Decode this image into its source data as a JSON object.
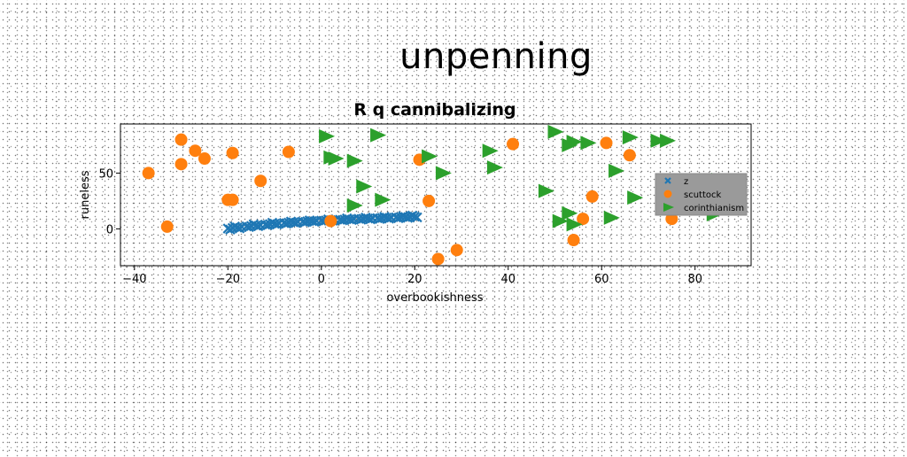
{
  "page_title": "unpenning",
  "chart_data": {
    "type": "scatter",
    "title": "R q cannibalizing",
    "xlabel": "overbookishness",
    "ylabel": "runeless",
    "xlim": [
      -43,
      92
    ],
    "ylim": [
      -33,
      94
    ],
    "xticks": [
      -40,
      -20,
      0,
      20,
      40,
      60,
      80
    ],
    "yticks": [
      0,
      50
    ],
    "legend_placement": "center-right",
    "grid": false,
    "series": [
      {
        "name": "z",
        "color": "#1f77b4",
        "marker": "x",
        "points": [
          [
            -20,
            0.3
          ],
          [
            -19,
            0.8
          ],
          [
            -18,
            1.2
          ],
          [
            -17,
            1.7
          ],
          [
            -16,
            2.2
          ],
          [
            -15,
            2.6
          ],
          [
            -14,
            3.0
          ],
          [
            -13,
            3.4
          ],
          [
            -12,
            3.8
          ],
          [
            -11,
            4.2
          ],
          [
            -10,
            4.6
          ],
          [
            -9,
            5.0
          ],
          [
            -8,
            5.3
          ],
          [
            -7,
            5.6
          ],
          [
            -6,
            5.9
          ],
          [
            -5,
            6.2
          ],
          [
            -4,
            6.5
          ],
          [
            -3,
            6.8
          ],
          [
            -2,
            7.0
          ],
          [
            -1,
            7.2
          ],
          [
            0,
            7.4
          ],
          [
            1,
            7.6
          ],
          [
            2,
            7.8
          ],
          [
            3,
            8.0
          ],
          [
            4,
            8.2
          ],
          [
            5,
            8.4
          ],
          [
            6,
            8.6
          ],
          [
            7,
            8.8
          ],
          [
            8,
            9.0
          ],
          [
            9,
            9.1
          ],
          [
            10,
            9.3
          ],
          [
            11,
            9.5
          ],
          [
            12,
            9.6
          ],
          [
            13,
            9.8
          ],
          [
            14,
            10.0
          ],
          [
            15,
            10.1
          ],
          [
            16,
            10.3
          ],
          [
            17,
            10.5
          ],
          [
            18,
            10.6
          ],
          [
            19,
            10.8
          ],
          [
            20,
            11.0
          ],
          [
            -19.5,
            -0.6
          ],
          [
            -17.5,
            0.5
          ],
          [
            -15.5,
            1.6
          ],
          [
            -13.5,
            2.4
          ],
          [
            -11.5,
            3.3
          ],
          [
            -9.5,
            4.0
          ],
          [
            -7.5,
            4.7
          ],
          [
            -5.5,
            5.3
          ],
          [
            -3.5,
            5.9
          ],
          [
            -1.5,
            6.4
          ],
          [
            0.5,
            6.9
          ],
          [
            2.5,
            7.3
          ],
          [
            4.5,
            7.7
          ],
          [
            6.5,
            8.0
          ],
          [
            8.5,
            8.3
          ],
          [
            10.5,
            8.6
          ],
          [
            12.5,
            8.9
          ],
          [
            14.5,
            9.2
          ],
          [
            16.5,
            9.6
          ],
          [
            18.5,
            9.9
          ],
          [
            20.5,
            10.3
          ],
          [
            -18.5,
            2.1
          ],
          [
            -14.5,
            4.1
          ],
          [
            -10.5,
            5.5
          ],
          [
            -6.5,
            6.6
          ],
          [
            -2.5,
            7.6
          ],
          [
            1.5,
            8.6
          ],
          [
            5.5,
            9.4
          ],
          [
            9.5,
            10.1
          ],
          [
            13.5,
            10.8
          ],
          [
            17.5,
            11.4
          ],
          [
            19.5,
            11.9
          ]
        ]
      },
      {
        "name": "scuttock",
        "color": "#ff7f0e",
        "marker": "o",
        "points": [
          [
            -37,
            50
          ],
          [
            -33,
            2
          ],
          [
            -30,
            80
          ],
          [
            -30,
            58
          ],
          [
            -27,
            70
          ],
          [
            -25,
            63
          ],
          [
            -20,
            26
          ],
          [
            -19,
            26
          ],
          [
            -19,
            68
          ],
          [
            -13,
            43
          ],
          [
            -7,
            69
          ],
          [
            2,
            7
          ],
          [
            21,
            62
          ],
          [
            23,
            25
          ],
          [
            25,
            -27
          ],
          [
            29,
            -19
          ],
          [
            41,
            76
          ],
          [
            54,
            -10
          ],
          [
            56,
            9
          ],
          [
            58,
            29
          ],
          [
            61,
            77
          ],
          [
            66,
            66
          ],
          [
            73,
            34
          ],
          [
            75,
            9
          ]
        ]
      },
      {
        "name": "corinthianism",
        "color": "#2ca02c",
        "marker": ">",
        "points": [
          [
            1,
            83
          ],
          [
            2,
            64
          ],
          [
            3,
            63
          ],
          [
            7,
            61
          ],
          [
            7,
            21
          ],
          [
            9,
            38
          ],
          [
            12,
            84
          ],
          [
            13,
            26
          ],
          [
            23,
            65
          ],
          [
            26,
            50
          ],
          [
            36,
            70
          ],
          [
            37,
            55
          ],
          [
            48,
            34
          ],
          [
            50,
            87
          ],
          [
            51,
            7
          ],
          [
            53,
            14
          ],
          [
            53,
            75
          ],
          [
            54,
            78
          ],
          [
            54,
            4
          ],
          [
            57,
            77
          ],
          [
            62,
            10
          ],
          [
            63,
            52
          ],
          [
            66,
            82
          ],
          [
            67,
            28
          ],
          [
            72,
            79
          ],
          [
            74,
            79
          ],
          [
            81,
            37
          ],
          [
            84,
            13
          ],
          [
            85,
            44
          ]
        ]
      }
    ]
  }
}
